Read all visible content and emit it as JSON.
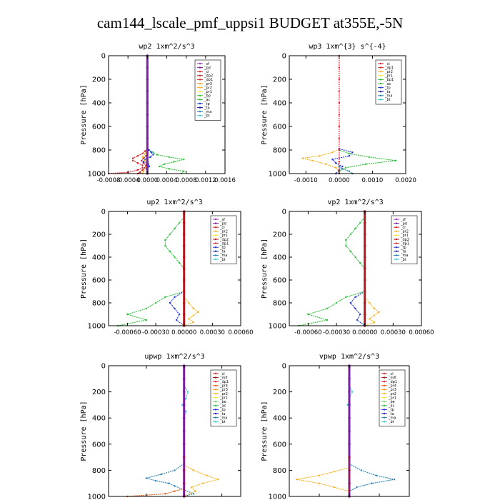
{
  "page": {
    "title": "cam144_lscale_pmf_uppsi1  BUDGET at355E,-5N"
  },
  "colors": {
    "sf": "#9b30c0",
    "pd": "#7a1fa2",
    "cl": "#d9262e",
    "dp": "#d9262e",
    "pr": "#f7b21e",
    "bp": "#2fbf3b",
    "ac": "#2fbf3b",
    "tp": "#2236d6",
    "ta": "#1a1a9e",
    "ma": "#2a7fb0",
    "bt": "#36c8d8",
    "mfl": "#8b1a1a",
    "be": "#2fbf3b",
    "pr1": "#f7e63a",
    "pr4": "#e05a12"
  },
  "chart_data": [
    {
      "id": "wp2",
      "type": "line",
      "title": "wp2   1xm^2/s^3",
      "ylabel": "Pressure [hPa]",
      "ylim": [
        1000,
        0
      ],
      "yticks": [
        0,
        200,
        400,
        600,
        800,
        1000
      ],
      "xlim": [
        -0.0008,
        0.0016
      ],
      "xticks": [
        -0.0008,
        -0.0004,
        0.0,
        0.0004,
        0.0008,
        0.0012,
        0.0016
      ],
      "xticklabels": [
        "-0.0008",
        "-0.0004",
        "0.0000",
        "0.0004",
        "0.0008",
        "0.0012",
        "0.0016"
      ],
      "legend_position": "top-right",
      "legend": [
        "_sf",
        "_pd",
        "_cl",
        "_dp2",
        "_dp1",
        "_pr3",
        "_pr2",
        "_pr1",
        "_bp",
        "_ac",
        "_tp",
        "_ta",
        "_ma",
        "_bt"
      ],
      "series": [
        {
          "name": "_ac",
          "color": "#2fbf3b",
          "pressure": [
            780,
            800,
            820,
            840,
            860,
            880,
            900,
            920,
            940,
            960,
            980,
            1000
          ],
          "values": [
            0.0,
            4e-05,
            0.00012,
            0.0002,
            0.00045,
            0.00075,
            0.00055,
            0.00035,
            0.00025,
            0.00045,
            0.00075,
            0.0007
          ]
        },
        {
          "name": "_dp1",
          "color": "#d9262e",
          "pressure": [
            790,
            810,
            830,
            850,
            870,
            890,
            910,
            930,
            950,
            970,
            990,
            1000
          ],
          "values": [
            0.0,
            -5e-05,
            -0.0001,
            -0.0002,
            -0.0003,
            -0.0003,
            -0.0002,
            -0.0001,
            -0.0001,
            -0.0002,
            -0.0004,
            -0.0008
          ]
        },
        {
          "name": "_dp2",
          "color": "#b01a20",
          "pressure": [
            830,
            850,
            870,
            890,
            910,
            930,
            950,
            970,
            990,
            1000
          ],
          "values": [
            0.0,
            -3e-05,
            -8e-05,
            -0.00012,
            -8e-05,
            -3e-05,
            -5e-05,
            -0.0001,
            -0.00015,
            -0.0002
          ]
        },
        {
          "name": "_tp",
          "color": "#2236d6",
          "pressure": [
            780,
            800,
            820,
            840,
            860,
            880,
            900,
            920,
            940,
            960,
            980,
            1000
          ],
          "values": [
            0.0,
            3e-05,
            8e-05,
            0.00012,
            6e-05,
            -5e-05,
            -8e-05,
            2e-05,
            4e-05,
            -2e-05,
            0.0,
            0.0
          ]
        },
        {
          "name": "_pr1",
          "color": "#f7b21e",
          "pressure": [
            800,
            830,
            860,
            890,
            920,
            950,
            980,
            1000
          ],
          "values": [
            0.0,
            -4e-05,
            -0.0001,
            -5e-05,
            0.0,
            -3e-05,
            -8e-05,
            -0.0001
          ]
        },
        {
          "name": "_cl",
          "color": "#7a1fa2",
          "pressure": [
            0,
            100,
            200,
            300,
            400,
            500,
            600,
            700,
            800,
            900,
            1000
          ],
          "values": [
            0.0,
            0.0,
            0.0,
            0.0,
            0.0,
            0.0,
            0.0,
            0.0,
            0.0,
            0.0,
            0.0
          ]
        }
      ]
    },
    {
      "id": "wp3",
      "type": "line",
      "title": "wp3   1xm^{3} s^{-4}",
      "ylabel": "Pressure [hPa]",
      "ylim": [
        1000,
        0
      ],
      "yticks": [
        0,
        200,
        400,
        600,
        800,
        1000
      ],
      "xlim": [
        -0.0015,
        0.002
      ],
      "xticks": [
        -0.001,
        0.0,
        0.001,
        0.002
      ],
      "xticklabels": [
        "-0.0010",
        "0.0000",
        "0.0010",
        "0.0020"
      ],
      "legend_position": "top-right",
      "legend": [
        "_cl",
        "_dp1",
        "_pr2",
        "_pr1",
        "_bp1",
        "_ac",
        "_tp",
        "_ta",
        "_ma",
        "_bt"
      ],
      "series": [
        {
          "name": "_ac",
          "color": "#2fbf3b",
          "pressure": [
            800,
            830,
            860,
            890,
            920,
            950,
            980,
            1000
          ],
          "values": [
            0.0,
            0.0003,
            0.0009,
            0.0017,
            0.0008,
            0.0002,
            0.0,
            0.0
          ]
        },
        {
          "name": "_pr2",
          "color": "#f7b21e",
          "pressure": [
            790,
            820,
            850,
            870,
            890,
            920,
            950,
            980,
            1000
          ],
          "values": [
            0.0,
            -0.0002,
            -0.0006,
            -0.0011,
            -0.0008,
            -0.0004,
            -0.0001,
            0.0,
            0.0
          ]
        },
        {
          "name": "_tp",
          "color": "#2236d6",
          "pressure": [
            790,
            820,
            850,
            880,
            910,
            940,
            970,
            1000
          ],
          "values": [
            0.0,
            0.0004,
            0.0003,
            -0.0002,
            -0.0001,
            0.0001,
            0.0,
            -0.0001
          ]
        },
        {
          "name": "_dp1",
          "color": "#d9262e",
          "pressure": [
            0,
            100,
            200,
            300,
            400,
            500,
            600,
            700,
            800,
            900,
            1000
          ],
          "values": [
            0.0,
            0.0,
            0.0,
            0.0,
            0.0,
            0.0,
            0.0,
            0.0,
            0.0,
            0.0,
            0.0
          ]
        },
        {
          "name": "_ma",
          "color": "#2a7fb0",
          "pressure": [
            940,
            960,
            980,
            1000
          ],
          "values": [
            0.0,
            0.0001,
            0.0003,
            0.0004
          ]
        }
      ]
    },
    {
      "id": "up2",
      "type": "line",
      "title": "up2   1xm^2/s^3",
      "ylabel": "Pressure [hPa]",
      "ylim": [
        1000,
        0
      ],
      "yticks": [
        0,
        200,
        400,
        600,
        800,
        1000
      ],
      "xlim": [
        -0.0008,
        0.0006
      ],
      "xticks": [
        -0.0006,
        -0.0003,
        0.0,
        0.0003,
        0.0006
      ],
      "xticklabels": [
        "-0.00060",
        "-0.00030",
        "0.00000",
        "0.00030",
        "0.00060"
      ],
      "legend_position": "top-right",
      "legend": [
        "_sf",
        "_pd",
        "_cl",
        "_pr2",
        "_pr1",
        "_dp2",
        "_dp1",
        "_tp",
        "_ta",
        "_ma",
        "_bt"
      ],
      "series": [
        {
          "name": "_ac",
          "color": "#2fbf3b",
          "pressure": [
            50,
            100,
            150,
            200,
            250,
            300,
            350,
            400,
            450,
            500
          ],
          "values": [
            0.0,
            -5e-05,
            -0.0001,
            -0.00015,
            -0.0002,
            -0.0002,
            -0.00015,
            -0.0001,
            -5e-05,
            0.0
          ]
        },
        {
          "name": "_dp2",
          "color": "#2fbf3b",
          "pressure": [
            700,
            750,
            800,
            850,
            900,
            950,
            1000
          ],
          "values": [
            0.0,
            -0.0002,
            -0.0003,
            -0.0004,
            -0.0006,
            -0.0004,
            -0.0007
          ]
        },
        {
          "name": "_pr1",
          "color": "#f7b21e",
          "pressure": [
            750,
            800,
            850,
            880,
            910,
            940,
            970,
            1000
          ],
          "values": [
            0.0,
            5e-05,
            0.0001,
            0.00015,
            0.0001,
            5e-05,
            0.0001,
            0.0
          ]
        },
        {
          "name": "_tp",
          "color": "#2236d6",
          "pressure": [
            700,
            750,
            800,
            850,
            900,
            950,
            1000
          ],
          "values": [
            0.0,
            -0.0001,
            -0.00015,
            -0.0001,
            -5e-05,
            -8e-05,
            0.0
          ]
        },
        {
          "name": "_cl",
          "color": "#b01a20",
          "pressure": [
            0,
            100,
            200,
            300,
            400,
            500,
            600,
            700,
            800,
            900,
            1000
          ],
          "values": [
            0.0,
            0.0,
            0.0,
            0.0,
            0.0,
            0.0,
            0.0,
            0.0,
            0.0,
            0.0,
            0.0
          ]
        }
      ]
    },
    {
      "id": "vp2",
      "type": "line",
      "title": "vp2   1xm^2/s^3",
      "ylabel": "Pressure [hPa]",
      "ylim": [
        1000,
        0
      ],
      "yticks": [
        0,
        200,
        400,
        600,
        800,
        1000
      ],
      "xlim": [
        -0.0008,
        0.0006
      ],
      "xticks": [
        -0.0006,
        -0.0003,
        0.0,
        0.0003,
        0.0006
      ],
      "xticklabels": [
        "-0.00060",
        "-0.00030",
        "0.00000",
        "0.00030",
        "0.00060"
      ],
      "legend_position": "top-right",
      "legend": [
        "_sf",
        "_pd",
        "_cl",
        "_pr2",
        "_pr1",
        "_dp2",
        "_dp1",
        "_tp",
        "_ta",
        "_ma",
        "_bt"
      ],
      "series": [
        {
          "name": "_ac",
          "color": "#2fbf3b",
          "pressure": [
            50,
            100,
            150,
            200,
            250,
            300,
            350,
            400,
            450,
            500
          ],
          "values": [
            0.0,
            -5e-05,
            -0.0001,
            -0.00015,
            -0.0002,
            -0.0002,
            -0.00015,
            -0.0001,
            -5e-05,
            0.0
          ]
        },
        {
          "name": "_dp2",
          "color": "#2fbf3b",
          "pressure": [
            700,
            750,
            800,
            850,
            900,
            950,
            1000
          ],
          "values": [
            0.0,
            -0.0002,
            -0.0003,
            -0.0004,
            -0.0006,
            -0.0004,
            -0.0007
          ]
        },
        {
          "name": "_pr1",
          "color": "#f7b21e",
          "pressure": [
            750,
            800,
            850,
            880,
            910,
            940,
            970,
            1000
          ],
          "values": [
            0.0,
            5e-05,
            0.0001,
            0.00015,
            0.0001,
            5e-05,
            0.0001,
            0.0
          ]
        },
        {
          "name": "_tp",
          "color": "#2236d6",
          "pressure": [
            700,
            750,
            800,
            850,
            900,
            950,
            1000
          ],
          "values": [
            0.0,
            -0.0001,
            -0.00015,
            -0.0001,
            -5e-05,
            -8e-05,
            0.0
          ]
        },
        {
          "name": "_cl",
          "color": "#b01a20",
          "pressure": [
            0,
            100,
            200,
            300,
            400,
            500,
            600,
            700,
            800,
            900,
            1000
          ],
          "values": [
            0.0,
            0.0,
            0.0,
            0.0,
            0.0,
            0.0,
            0.0,
            0.0,
            0.0,
            0.0,
            0.0
          ]
        }
      ]
    },
    {
      "id": "upwp",
      "type": "line",
      "title": "upwp   1xm^2/s^3",
      "ylabel": "Pressure [hPa]",
      "ylim": [
        1000,
        0
      ],
      "yticks": [
        0,
        200,
        400,
        600,
        800,
        1000
      ],
      "xlim": [
        -0.0004,
        0.0003
      ],
      "xticks": [
        -0.0004,
        -0.0002,
        0.0,
        0.0002
      ],
      "xticklabels": [
        "-0.00040",
        "-0.00020",
        "0.00000",
        "0.00020"
      ],
      "legend_position": "top-right",
      "legend": [
        "_cl",
        "_mfl",
        "_dp1",
        "_pr4",
        "_pr3",
        "_pr2",
        "_pr1",
        "_be",
        "_ac",
        "_tp",
        "_ta",
        "_ma",
        "_bt"
      ],
      "series": [
        {
          "name": "_ma",
          "color": "#2a7fb0",
          "pressure": [
            750,
            800,
            830,
            860,
            880,
            900,
            920,
            950,
            980,
            1000
          ],
          "values": [
            0.0,
            -5e-05,
            -0.00012,
            -0.0002,
            -0.00015,
            -8e-05,
            -5e-05,
            0.0,
            5e-05,
            0.0
          ]
        },
        {
          "name": "_pr2",
          "color": "#f7b21e",
          "pressure": [
            760,
            800,
            840,
            870,
            900,
            930,
            960,
            1000
          ],
          "values": [
            0.0,
            5e-05,
            0.00012,
            0.00018,
            0.0001,
            4e-05,
            6e-05,
            0.0
          ]
        },
        {
          "name": "_bt",
          "color": "#36c8d8",
          "pressure": [
            150,
            200,
            250,
            300,
            350,
            400
          ],
          "values": [
            0.0,
            2e-05,
            1e-05,
            -1e-05,
            1e-05,
            0.0
          ]
        },
        {
          "name": "_pr4",
          "color": "#e05a12",
          "pressure": [
            940,
            960,
            980,
            1000
          ],
          "values": [
            0.0,
            -5e-05,
            -0.0001,
            -0.0003
          ]
        },
        {
          "name": "_cl",
          "color": "#7a1fa2",
          "pressure": [
            0,
            100,
            200,
            300,
            400,
            500,
            600,
            700,
            800,
            900,
            1000
          ],
          "values": [
            0.0,
            0.0,
            0.0,
            0.0,
            0.0,
            0.0,
            0.0,
            0.0,
            0.0,
            0.0,
            0.0
          ]
        },
        {
          "name": "_dp1",
          "color": "#b01a20",
          "pressure": [
            700,
            800,
            850,
            900,
            950,
            1000
          ],
          "values": [
            0.0,
            0.0,
            0.0,
            0.0,
            0.0,
            0.0
          ]
        }
      ]
    },
    {
      "id": "vpwp",
      "type": "line",
      "title": "vpwp   1xm^2/s^3",
      "ylabel": "Pressure [hPa]",
      "ylim": [
        1000,
        0
      ],
      "yticks": [
        0,
        200,
        400,
        600,
        800,
        1000
      ],
      "xlim": [
        -0.0004,
        0.0004
      ],
      "xticks": [
        -0.0004,
        -0.0002,
        0.0,
        0.0002,
        0.0004
      ],
      "xticklabels": [
        "-0.00040",
        "-0.00020",
        "0.00000",
        "0.00020",
        "0.00040"
      ],
      "legend_position": "top-right",
      "legend": [
        "_cl",
        "_mfl",
        "_dp1",
        "_pr4",
        "_pr3",
        "_pr2",
        "_pr1",
        "_be",
        "_ac",
        "_tp",
        "_ta",
        "_ma",
        "_bt"
      ],
      "series": [
        {
          "name": "_ma",
          "color": "#2a7fb0",
          "pressure": [
            750,
            800,
            840,
            870,
            900,
            930,
            960,
            1000
          ],
          "values": [
            0.0,
            8e-05,
            0.00018,
            0.0003,
            0.00015,
            5e-05,
            0.0,
            0.0
          ]
        },
        {
          "name": "_pr2",
          "color": "#f7b21e",
          "pressure": [
            780,
            810,
            840,
            870,
            900,
            930,
            960,
            1000
          ],
          "values": [
            0.0,
            -0.0001,
            -0.0002,
            -0.00035,
            -0.0002,
            -0.0001,
            0.0,
            0.0
          ]
        },
        {
          "name": "_bt",
          "color": "#36c8d8",
          "pressure": [
            150,
            200,
            250,
            300
          ],
          "values": [
            0.0,
            2e-05,
            0.0,
            -1e-05
          ]
        },
        {
          "name": "_cl",
          "color": "#7a1fa2",
          "pressure": [
            0,
            100,
            200,
            300,
            400,
            500,
            600,
            700,
            800,
            900,
            1000
          ],
          "values": [
            0.0,
            0.0,
            0.0,
            0.0,
            0.0,
            0.0,
            0.0,
            0.0,
            0.0,
            0.0,
            0.0
          ]
        },
        {
          "name": "_dp1",
          "color": "#b01a20",
          "pressure": [
            700,
            800,
            850,
            900,
            950,
            1000
          ],
          "values": [
            0.0,
            0.0,
            0.0,
            0.0,
            0.0,
            0.0
          ]
        }
      ]
    }
  ]
}
